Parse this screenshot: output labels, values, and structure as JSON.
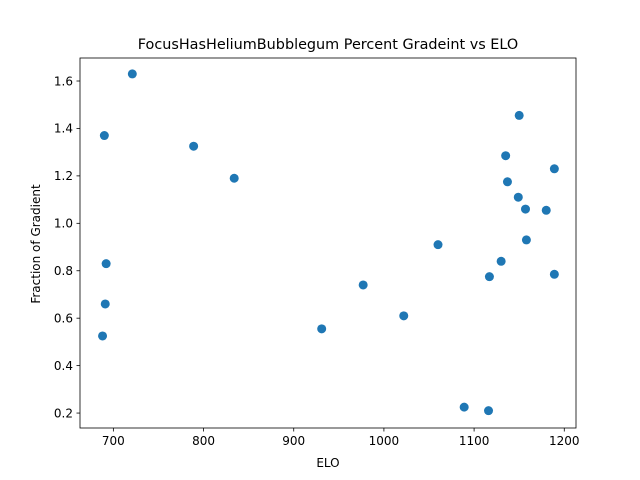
{
  "chart_data": {
    "type": "scatter",
    "title": "FocusHasHeliumBubblegum Percent Gradeint vs ELO",
    "xlabel": "ELO",
    "ylabel": "Fraction of Gradient",
    "xlim": [
      663,
      1213
    ],
    "ylim": [
      0.137,
      1.697
    ],
    "xticks": [
      700,
      800,
      900,
      1000,
      1100,
      1200
    ],
    "yticks": [
      0.2,
      0.4,
      0.6,
      0.8,
      1.0,
      1.2,
      1.4,
      1.6
    ],
    "xtick_labels": [
      "700",
      "800",
      "900",
      "1000",
      "1100",
      "1200"
    ],
    "ytick_labels": [
      "0.2",
      "0.4",
      "0.6",
      "0.8",
      "1.0",
      "1.2",
      "1.4",
      "1.6"
    ],
    "grid": false,
    "legend": "none",
    "marker_color": "#1f77b4",
    "series": [
      {
        "x": [
          721,
          690,
          789,
          834,
          692,
          691,
          688,
          931,
          977,
          1022,
          1060,
          1089,
          1116,
          1117,
          1130,
          1135,
          1137,
          1149,
          1150,
          1157,
          1158,
          1180,
          1189,
          1189
        ],
        "y": [
          1.63,
          1.37,
          1.325,
          1.19,
          0.83,
          0.66,
          0.525,
          0.555,
          0.74,
          0.61,
          0.91,
          0.225,
          0.21,
          0.775,
          0.84,
          1.285,
          1.175,
          1.11,
          1.455,
          1.06,
          0.93,
          1.055,
          1.23,
          0.785
        ]
      }
    ]
  }
}
